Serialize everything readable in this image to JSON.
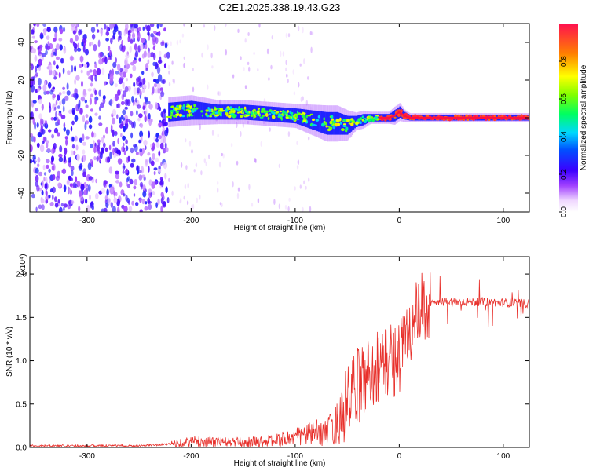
{
  "title": "C2E1.2025.338.19.43.G23",
  "chart_data": [
    {
      "type": "heatmap",
      "name": "spectrogram",
      "xlabel": "Height of straight line (km)",
      "ylabel": "Frequency (Hz)",
      "xlim": [
        -355,
        125
      ],
      "ylim": [
        -50,
        50
      ],
      "xticks": [
        -300,
        -200,
        -100,
        0,
        100
      ],
      "yticks": [
        -40,
        -20,
        0,
        20,
        40
      ],
      "noise_region_x": [
        -355,
        -222
      ],
      "signal_start_x": -222,
      "ridge": {
        "x": [
          -222,
          -200,
          -175,
          -150,
          -125,
          -100,
          -85,
          -70,
          -60,
          -50,
          -42,
          -35,
          -28,
          -20,
          -10,
          -5,
          0,
          5,
          10,
          30,
          60,
          90,
          125
        ],
        "freq": [
          3,
          4,
          3,
          3,
          2,
          1,
          -1,
          -3,
          -3,
          -4,
          -2,
          -1,
          0,
          0,
          0,
          1,
          3,
          1,
          0,
          0,
          0,
          0,
          0
        ],
        "halfwidth": [
          5,
          5,
          4,
          4,
          4,
          4,
          5,
          6,
          6,
          5,
          3,
          3,
          2,
          2,
          2,
          3,
          3,
          2,
          1.5,
          1.5,
          1.5,
          1.5,
          1.5
        ]
      },
      "colorbar": {
        "label": "Normalized spectral amplitude",
        "range": [
          0,
          1
        ],
        "ticks": [
          0.0,
          0.2,
          0.4,
          0.6,
          0.8
        ]
      }
    },
    {
      "type": "line",
      "name": "snr",
      "xlabel": "Height of straight line (km)",
      "ylabel": "SNR (10 * v/v)",
      "multiplier_label": "(x10⁴)",
      "xlim": [
        -355,
        125
      ],
      "ylim": [
        0,
        2.2
      ],
      "xticks": [
        -300,
        -200,
        -100,
        0,
        100
      ],
      "yticks": [
        0.0,
        0.5,
        1.0,
        1.5,
        2.0
      ],
      "envelope": {
        "x": [
          -355,
          -250,
          -220,
          -200,
          -150,
          -120,
          -100,
          -80,
          -70,
          -60,
          -50,
          -40,
          -30,
          -20,
          -10,
          0,
          10,
          20,
          30,
          40,
          60,
          80,
          100,
          125
        ],
        "y": [
          0.02,
          0.02,
          0.04,
          0.07,
          0.06,
          0.08,
          0.12,
          0.17,
          0.17,
          0.28,
          0.5,
          0.7,
          0.85,
          0.95,
          1.0,
          1.05,
          1.35,
          1.55,
          1.65,
          1.68,
          1.68,
          1.68,
          1.67,
          1.66
        ]
      },
      "color": "#e8302b"
    }
  ]
}
